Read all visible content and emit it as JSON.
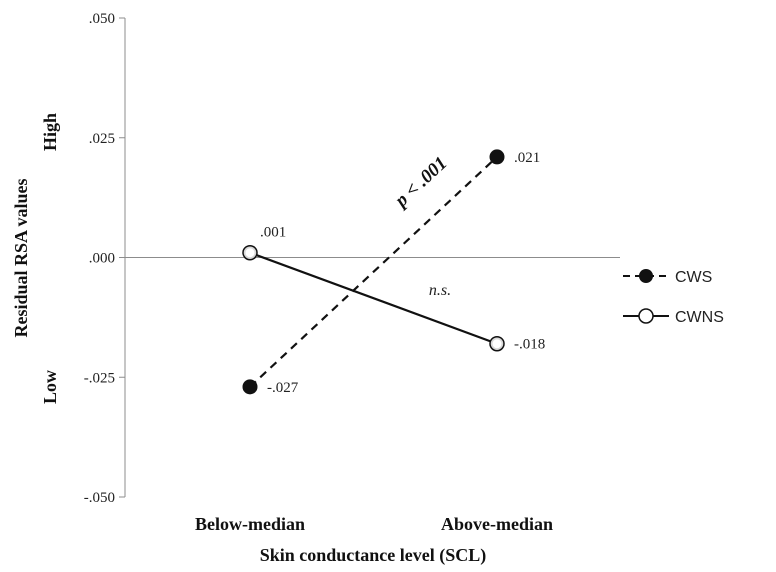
{
  "chart_data": {
    "type": "line",
    "categories": [
      "Below-median",
      "Above-median"
    ],
    "xlabel": "Skin conductance level (SCL)",
    "ylabel": "Residual RSA values",
    "ylabel_high": "High",
    "ylabel_low": "Low",
    "ylim": [
      -0.05,
      0.05
    ],
    "yticks": [
      0.05,
      0.025,
      0.0,
      -0.025,
      -0.05
    ],
    "ytick_labels": [
      ".050",
      ".025",
      ".000",
      "-.025",
      "-.050"
    ],
    "grid": false,
    "legend_position": "right",
    "series": [
      {
        "name": "CWS",
        "values": [
          -0.027,
          0.021
        ],
        "value_labels": [
          "-.027",
          ".021"
        ],
        "line_style": "dashed",
        "marker": "filled-circle",
        "annotation": "p < .001"
      },
      {
        "name": "CWNS",
        "values": [
          0.001,
          -0.018
        ],
        "value_labels": [
          ".001",
          "-.018"
        ],
        "line_style": "solid",
        "marker": "open-circle",
        "annotation": "n.s."
      }
    ]
  },
  "colors": {
    "line": "#111111",
    "axis": "#8c8c8c",
    "open_marker_fill": "#ffffff"
  }
}
